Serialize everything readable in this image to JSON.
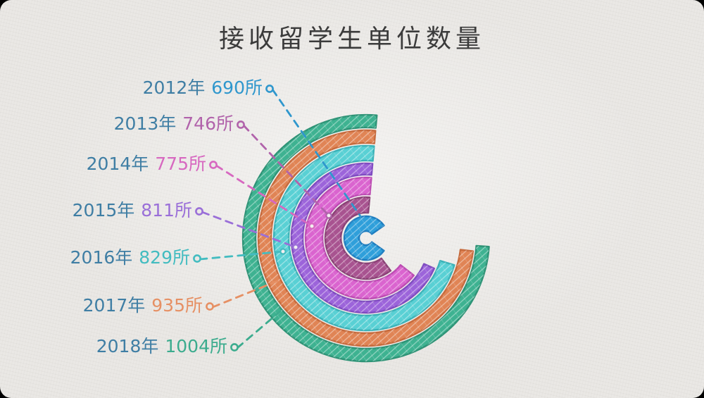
{
  "title": "接收留学生单位数量",
  "colors": {
    "paper": "#eae8e5",
    "frame": "#000000",
    "title_text": "#3b3b3b",
    "year_text": "#3f7ea4"
  },
  "chart_data": {
    "type": "radial-bar",
    "title": "接收留学生单位数量",
    "unit": "所",
    "direction": "arcs start near 12 o'clock and sweep counterclockwise",
    "legend_position": "left labels with dashed leader lines",
    "categories": [
      "2012年",
      "2013年",
      "2014年",
      "2015年",
      "2016年",
      "2017年",
      "2018年"
    ],
    "values": [
      690,
      746,
      775,
      811,
      829,
      935,
      1004
    ],
    "series": [
      {
        "year_label": "2012年",
        "value": 690,
        "value_label": "690所",
        "ring": "innermost",
        "start_deg": 55,
        "sweep_deg": 290,
        "fill": "#2f9fda",
        "stroke": "#1e7ec0",
        "text_color": "#2f97cd"
      },
      {
        "year_label": "2013年",
        "value": 746,
        "value_label": "746所",
        "ring": "2",
        "start_deg": 5,
        "sweep_deg": 222,
        "fill": "#a85390",
        "stroke": "#8a4276",
        "text_color": "#b163ab"
      },
      {
        "year_label": "2014年",
        "value": 775,
        "value_label": "775所",
        "ring": "3",
        "start_deg": 5,
        "sweep_deg": 237,
        "fill": "#da64cf",
        "stroke": "#bc4cb2",
        "text_color": "#d768c0"
      },
      {
        "year_label": "2015年",
        "value": 811,
        "value_label": "811所",
        "ring": "4",
        "start_deg": 5,
        "sweep_deg": 251,
        "fill": "#9c64da",
        "stroke": "#7f4cc0",
        "text_color": "#9a6fd8"
      },
      {
        "year_label": "2016年",
        "value": 829,
        "value_label": "829所",
        "ring": "5",
        "start_deg": 5,
        "sweep_deg": 258,
        "fill": "#59d0d4",
        "stroke": "#3bb2b8",
        "text_color": "#43bcc0"
      },
      {
        "year_label": "2017年",
        "value": 935,
        "value_label": "935所",
        "ring": "6",
        "start_deg": 5,
        "sweep_deg": 268,
        "fill": "#e08455",
        "stroke": "#c66a3c",
        "text_color": "#e69064"
      },
      {
        "year_label": "2018年",
        "value": 1004,
        "value_label": "1004所",
        "ring": "outermost",
        "start_deg": 5,
        "sweep_deg": 271,
        "fill": "#3eb291",
        "stroke": "#2e9376",
        "text_color": "#3cac8e"
      }
    ]
  }
}
